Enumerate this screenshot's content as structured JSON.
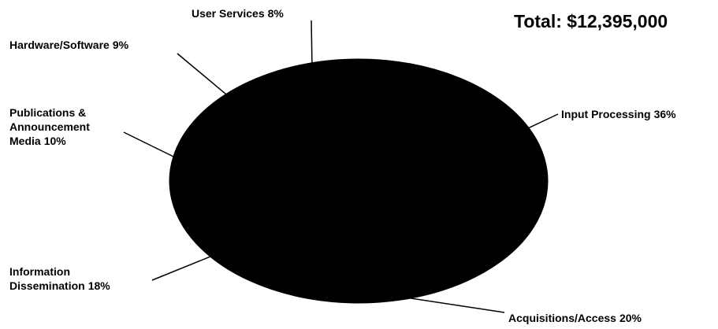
{
  "chart_data": {
    "type": "pie",
    "title": "Total: $12,395,000",
    "color": "#000000",
    "categories": [
      "Input Processing",
      "Acquisitions/Access",
      "Information Dissemination",
      "Publications & Announcement Media",
      "Hardware/Software",
      "User Services"
    ],
    "values": [
      36,
      20,
      18,
      10,
      9,
      8
    ],
    "value_labels": [
      "36%",
      "20%",
      "18%",
      "10%",
      "9%",
      "8%"
    ]
  }
}
